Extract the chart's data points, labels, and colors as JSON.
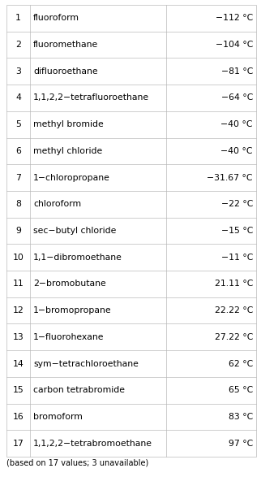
{
  "rows": [
    {
      "num": "1",
      "name": "fluoroform",
      "temp": "−112 °C"
    },
    {
      "num": "2",
      "name": "fluoromethane",
      "temp": "−104 °C"
    },
    {
      "num": "3",
      "name": "difluoroethane",
      "temp": "−81 °C"
    },
    {
      "num": "4",
      "name": "1,1,2,2−tetrafluoroethane",
      "temp": "−64 °C"
    },
    {
      "num": "5",
      "name": "methyl bromide",
      "temp": "−40 °C"
    },
    {
      "num": "6",
      "name": "methyl chloride",
      "temp": "−40 °C"
    },
    {
      "num": "7",
      "name": "1−chloropropane",
      "temp": "−31.67 °C"
    },
    {
      "num": "8",
      "name": "chloroform",
      "temp": "−22 °C"
    },
    {
      "num": "9",
      "name": "sec−butyl chloride",
      "temp": "−15 °C"
    },
    {
      "num": "10",
      "name": "1,1−dibromoethane",
      "temp": "−11 °C"
    },
    {
      "num": "11",
      "name": "2−bromobutane",
      "temp": "21.11 °C"
    },
    {
      "num": "12",
      "name": "1−bromopropane",
      "temp": "22.22 °C"
    },
    {
      "num": "13",
      "name": "1−fluorohexane",
      "temp": "27.22 °C"
    },
    {
      "num": "14",
      "name": "sym−tetrachloroethane",
      "temp": "62 °C"
    },
    {
      "num": "15",
      "name": "carbon tetrabromide",
      "temp": "65 °C"
    },
    {
      "num": "16",
      "name": "bromoform",
      "temp": "83 °C"
    },
    {
      "num": "17",
      "name": "1,1,2,2−tetrabromoethane",
      "temp": "97 °C"
    }
  ],
  "footer": "(based on 17 values; 3 unavailable)",
  "bg_color": "#ffffff",
  "border_color": "#bbbbbb",
  "text_color": "#000000",
  "font_size": 7.8,
  "footer_font_size": 7.0,
  "figwidth": 3.22,
  "figheight": 5.87,
  "dpi": 100
}
